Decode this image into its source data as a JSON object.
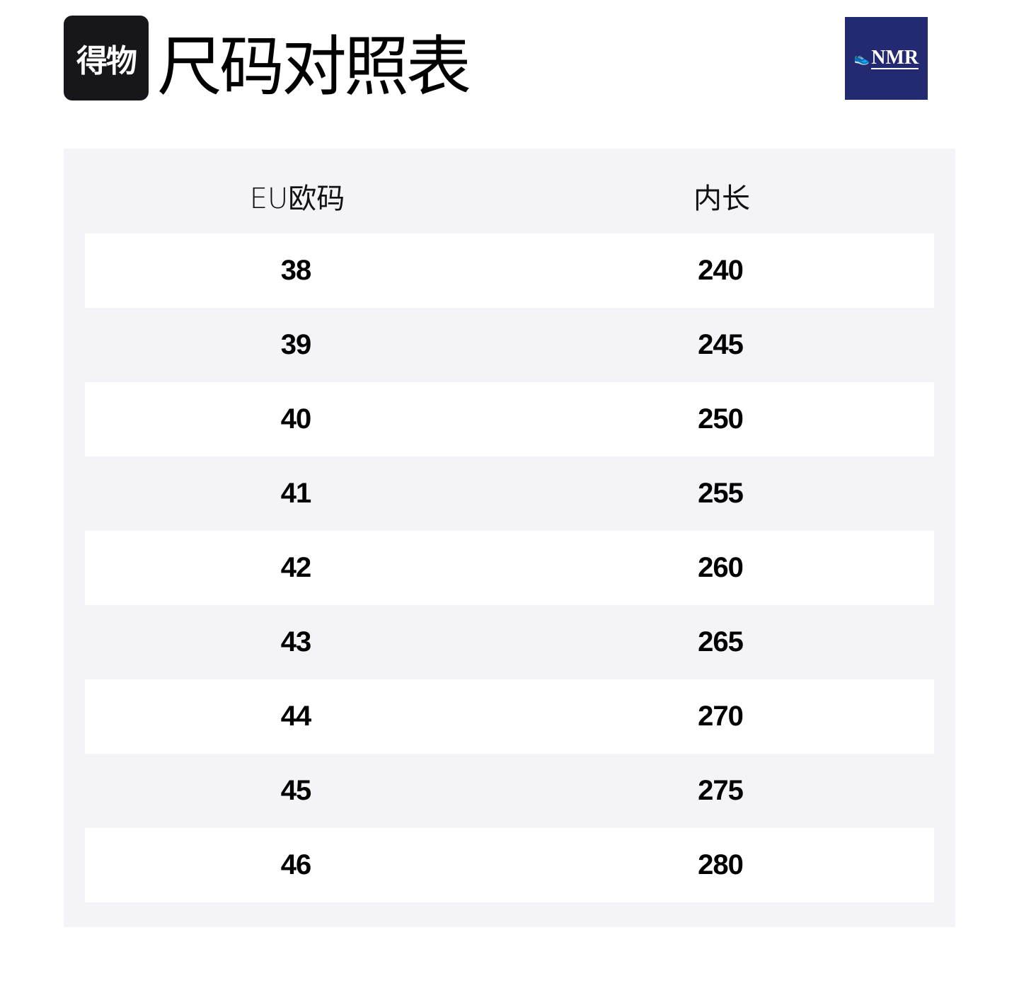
{
  "header": {
    "brand_logo_text": "得物",
    "title": "尺码对照表",
    "partner_logo_text": "NMR"
  },
  "table": {
    "columns": [
      "EU欧码",
      "内长"
    ],
    "rows": [
      [
        "38",
        "240"
      ],
      [
        "39",
        "245"
      ],
      [
        "40",
        "250"
      ],
      [
        "41",
        "255"
      ],
      [
        "42",
        "260"
      ],
      [
        "43",
        "265"
      ],
      [
        "44",
        "270"
      ],
      [
        "45",
        "275"
      ],
      [
        "46",
        "280"
      ]
    ]
  }
}
